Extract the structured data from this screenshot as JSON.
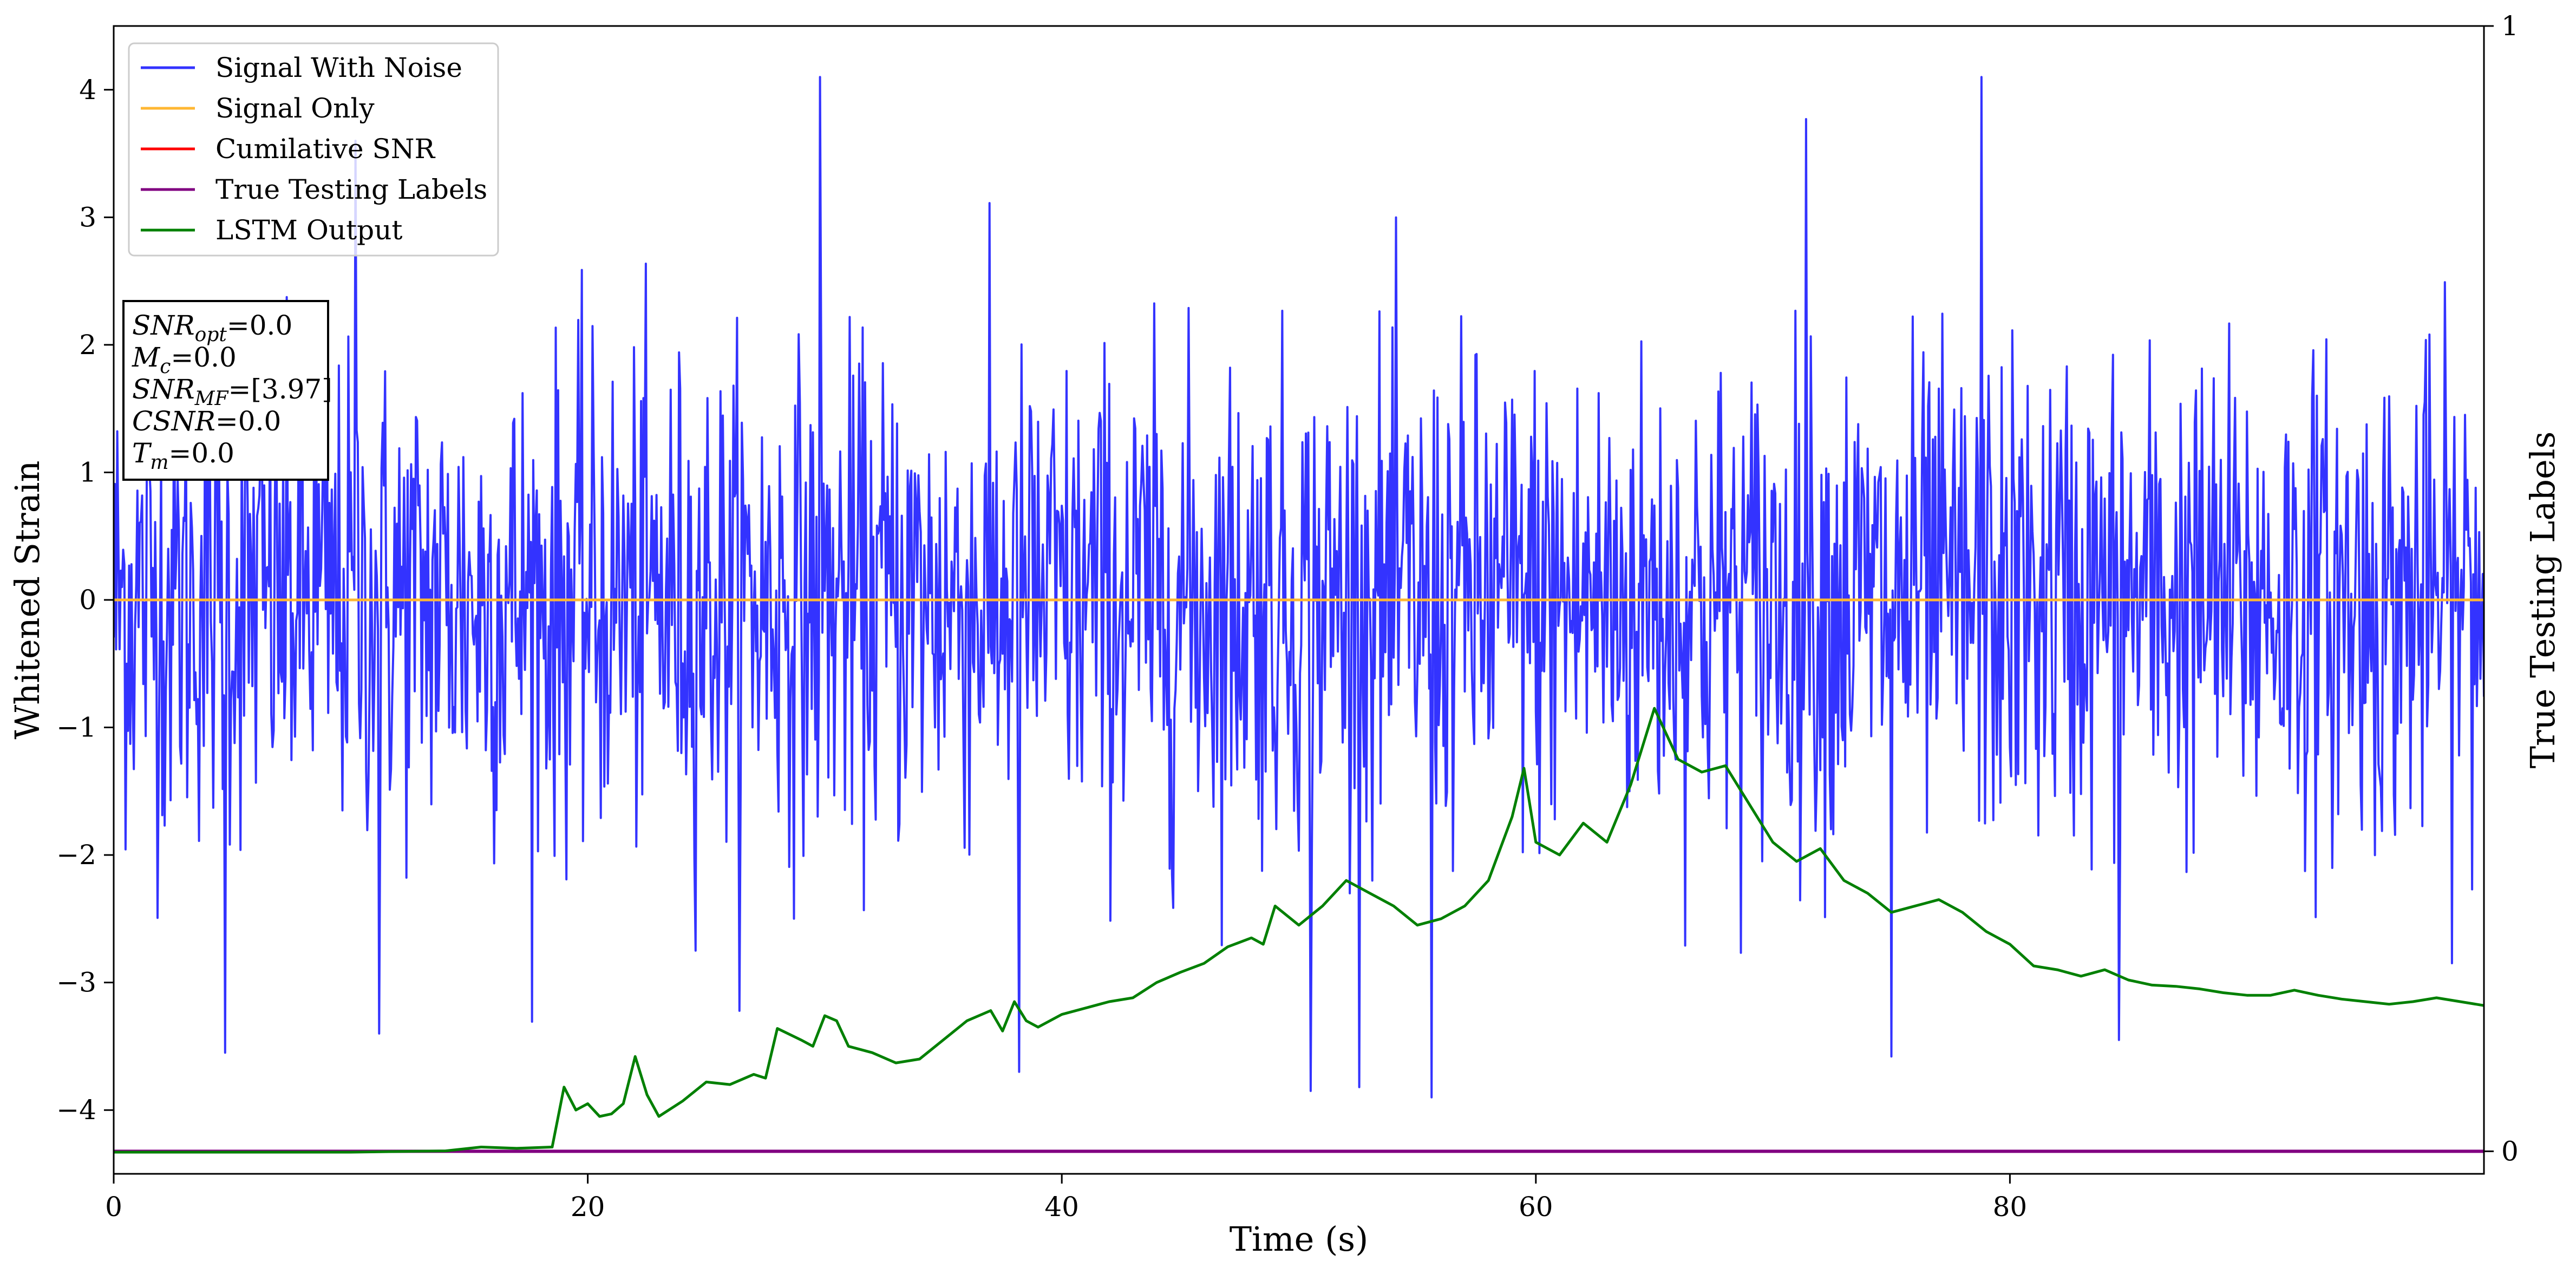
{
  "chart_data": {
    "type": "line",
    "title": "",
    "xlabel": "Time (s)",
    "ylabel": "Whitened Strain",
    "y2label": "True Testing Labels",
    "xlim": [
      0,
      100
    ],
    "ylim": [
      -4.5,
      4.5
    ],
    "y2lim": [
      -0.02,
      1
    ],
    "xticks": [
      0,
      20,
      40,
      60,
      80
    ],
    "yticks": [
      -4,
      -3,
      -2,
      -1,
      0,
      1,
      2,
      3,
      4
    ],
    "y2ticks": [
      0,
      1
    ],
    "grid": false,
    "legend_position": "top-left",
    "legend": [
      {
        "label": "Signal With Noise",
        "color": "#3333ff"
      },
      {
        "label": "Signal Only",
        "color": "#ffb733"
      },
      {
        "label": "Cumilative SNR",
        "color": "#ff0000"
      },
      {
        "label": "True Testing Labels",
        "color": "#800080"
      },
      {
        "label": "LSTM Output",
        "color": "#008000"
      }
    ],
    "annotation": [
      {
        "main": "SNR",
        "sub": "opt",
        "value": "=0.0"
      },
      {
        "main": "M",
        "sub": "c",
        "value": "=0.0"
      },
      {
        "main": "SNR",
        "sub": "MF",
        "value": "=[3.97]"
      },
      {
        "main": "CSNR",
        "sub": "",
        "value": "=0.0"
      },
      {
        "main": "T",
        "sub": "m",
        "value": "=0.0"
      }
    ],
    "series": [
      {
        "name": "Signal With Noise",
        "color": "#3333ff",
        "description_stats": {
          "mean": 0.0,
          "std": 1.0,
          "max": 4.1,
          "min": -3.9
        },
        "samples_per_second": 20,
        "peaks": [
          {
            "x": 4.7,
            "y": -3.55
          },
          {
            "x": 10.2,
            "y": 3.6
          },
          {
            "x": 11.2,
            "y": -3.4
          },
          {
            "x": 29.8,
            "y": 4.1
          },
          {
            "x": 38.2,
            "y": -3.7
          },
          {
            "x": 50.5,
            "y": -3.85
          },
          {
            "x": 55.6,
            "y": -3.9
          },
          {
            "x": 71.4,
            "y": 3.77
          },
          {
            "x": 75.0,
            "y": -3.58
          },
          {
            "x": 78.8,
            "y": 4.1
          },
          {
            "x": 84.6,
            "y": -3.45
          }
        ]
      },
      {
        "name": "Signal Only",
        "color": "#ffb733",
        "x": [
          0,
          100
        ],
        "y": [
          0,
          0
        ]
      },
      {
        "name": "True Testing Labels",
        "color": "#800080",
        "axis": "y2",
        "x": [
          0,
          100
        ],
        "y": [
          0,
          0
        ]
      },
      {
        "name": "LSTM Output",
        "color": "#008000",
        "x": [
          0,
          5,
          10,
          14,
          15.5,
          17,
          18.5,
          19,
          19.5,
          20,
          20.5,
          21,
          21.5,
          22,
          22.5,
          23,
          24,
          25,
          26,
          27,
          27.5,
          28,
          29,
          29.5,
          30,
          30.5,
          31,
          32,
          33,
          34,
          35,
          36,
          37,
          37.5,
          38,
          38.5,
          39,
          40,
          41,
          42,
          43,
          44,
          45,
          46,
          47,
          48,
          48.5,
          49,
          50,
          51,
          52,
          53,
          54,
          55,
          56,
          57,
          58,
          58.5,
          59,
          59.5,
          60,
          61,
          62,
          63,
          64,
          65,
          66,
          67,
          68,
          69,
          70,
          71,
          72,
          73,
          74,
          75,
          76,
          77,
          78,
          79,
          80,
          81,
          82,
          83,
          84,
          85,
          86,
          87,
          88,
          89,
          90,
          91,
          92,
          93,
          94,
          95,
          96,
          97,
          98,
          99,
          100
        ],
        "y": [
          -4.33,
          -4.33,
          -4.33,
          -4.32,
          -4.29,
          -4.3,
          -4.29,
          -3.82,
          -4.0,
          -3.95,
          -4.05,
          -4.03,
          -3.95,
          -3.58,
          -3.88,
          -4.05,
          -3.93,
          -3.78,
          -3.8,
          -3.72,
          -3.75,
          -3.36,
          -3.45,
          -3.5,
          -3.26,
          -3.3,
          -3.5,
          -3.55,
          -3.63,
          -3.6,
          -3.45,
          -3.3,
          -3.22,
          -3.38,
          -3.15,
          -3.3,
          -3.35,
          -3.25,
          -3.2,
          -3.15,
          -3.12,
          -3.0,
          -2.92,
          -2.85,
          -2.72,
          -2.65,
          -2.7,
          -2.4,
          -2.55,
          -2.4,
          -2.2,
          -2.3,
          -2.4,
          -2.55,
          -2.5,
          -2.4,
          -2.2,
          -1.95,
          -1.7,
          -1.32,
          -1.9,
          -2.0,
          -1.75,
          -1.9,
          -1.45,
          -0.85,
          -1.25,
          -1.35,
          -1.3,
          -1.6,
          -1.9,
          -2.05,
          -1.95,
          -2.2,
          -2.3,
          -2.45,
          -2.4,
          -2.35,
          -2.45,
          -2.6,
          -2.7,
          -2.87,
          -2.9,
          -2.95,
          -2.9,
          -2.98,
          -3.02,
          -3.03,
          -3.05,
          -3.08,
          -3.1,
          -3.1,
          -3.06,
          -3.1,
          -3.13,
          -3.15,
          -3.17,
          -3.15,
          -3.12,
          -3.15,
          -3.18
        ]
      }
    ]
  }
}
